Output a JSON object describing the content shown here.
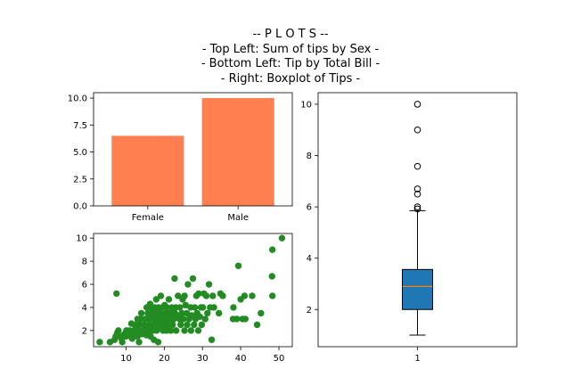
{
  "figure": {
    "title_lines": [
      "-- P L O T S --",
      "- Top Left: Sum of tips by Sex -",
      "- Bottom Left: Tip by Total Bill -",
      "- Right: Boxplot of Tips -"
    ]
  },
  "chart_data": [
    {
      "type": "bar",
      "categories": [
        "Female",
        "Male"
      ],
      "values": [
        6.5,
        10.0
      ],
      "ylim": [
        0,
        10.5
      ],
      "yticks": [
        0.0,
        2.5,
        5.0,
        7.5,
        10.0
      ],
      "ytick_labels": [
        "0.0",
        "2.5",
        "5.0",
        "7.5",
        "10.0"
      ],
      "color": "#ff7f50",
      "grid": false
    },
    {
      "type": "scatter",
      "xlim": [
        1.5,
        53.5
      ],
      "ylim": [
        0.6,
        10.4
      ],
      "xticks": [
        10,
        20,
        30,
        40,
        50
      ],
      "yticks": [
        2,
        4,
        6,
        8,
        10
      ],
      "color": "#228b22",
      "grid": false,
      "points": [
        [
          3.1,
          1.0
        ],
        [
          5.8,
          1.0
        ],
        [
          7.0,
          1.2
        ],
        [
          7.3,
          1.5
        ],
        [
          7.5,
          5.2
        ],
        [
          7.7,
          1.8
        ],
        [
          8.0,
          2.0
        ],
        [
          8.5,
          1.5
        ],
        [
          8.8,
          1.3
        ],
        [
          9.0,
          1.0
        ],
        [
          9.6,
          1.7
        ],
        [
          10.0,
          1.5
        ],
        [
          10.1,
          2.0
        ],
        [
          10.3,
          1.8
        ],
        [
          10.6,
          1.6
        ],
        [
          11.0,
          2.0
        ],
        [
          11.2,
          1.5
        ],
        [
          11.4,
          2.6
        ],
        [
          11.6,
          1.3
        ],
        [
          12.0,
          2.0
        ],
        [
          12.3,
          2.5
        ],
        [
          12.5,
          1.7
        ],
        [
          12.8,
          2.2
        ],
        [
          13.0,
          1.5
        ],
        [
          13.0,
          3.0
        ],
        [
          13.3,
          2.0
        ],
        [
          13.4,
          1.0
        ],
        [
          13.6,
          2.5
        ],
        [
          13.9,
          3.0
        ],
        [
          14.0,
          3.5
        ],
        [
          14.2,
          1.7
        ],
        [
          14.5,
          2.0
        ],
        [
          14.8,
          2.5
        ],
        [
          15.0,
          2.3
        ],
        [
          15.0,
          3.0
        ],
        [
          15.3,
          1.6
        ],
        [
          15.4,
          4.0
        ],
        [
          15.6,
          2.0
        ],
        [
          15.7,
          3.5
        ],
        [
          16.0,
          2.5
        ],
        [
          16.0,
          3.0
        ],
        [
          16.2,
          2.0
        ],
        [
          16.3,
          4.3
        ],
        [
          16.4,
          1.5
        ],
        [
          16.5,
          3.2
        ],
        [
          16.6,
          2.3
        ],
        [
          16.8,
          3.9
        ],
        [
          17.0,
          2.0
        ],
        [
          17.0,
          3.5
        ],
        [
          17.2,
          2.6
        ],
        [
          17.3,
          1.2
        ],
        [
          17.5,
          3.0
        ],
        [
          17.5,
          4.0
        ],
        [
          17.8,
          2.5
        ],
        [
          17.9,
          4.7
        ],
        [
          18.0,
          2.0
        ],
        [
          18.0,
          3.3
        ],
        [
          18.2,
          3.5
        ],
        [
          18.3,
          2.8
        ],
        [
          18.4,
          1.0
        ],
        [
          18.5,
          4.0
        ],
        [
          18.7,
          3.0
        ],
        [
          18.8,
          2.2
        ],
        [
          19.0,
          3.5
        ],
        [
          19.1,
          5.0
        ],
        [
          19.3,
          2.5
        ],
        [
          19.4,
          3.0
        ],
        [
          19.5,
          4.0
        ],
        [
          19.7,
          2.0
        ],
        [
          19.8,
          3.2
        ],
        [
          20.0,
          3.0
        ],
        [
          20.1,
          4.2
        ],
        [
          20.2,
          2.5
        ],
        [
          20.3,
          3.5
        ],
        [
          20.5,
          3.0
        ],
        [
          20.6,
          2.0
        ],
        [
          20.7,
          4.0
        ],
        [
          20.9,
          3.5
        ],
        [
          21.0,
          3.0
        ],
        [
          21.0,
          2.5
        ],
        [
          21.2,
          4.7
        ],
        [
          21.5,
          3.5
        ],
        [
          21.7,
          2.0
        ],
        [
          21.9,
          3.0
        ],
        [
          22.0,
          4.0
        ],
        [
          22.2,
          2.5
        ],
        [
          22.4,
          3.5
        ],
        [
          22.5,
          3.0
        ],
        [
          22.7,
          6.5
        ],
        [
          22.8,
          3.5
        ],
        [
          23.0,
          4.0
        ],
        [
          23.1,
          2.0
        ],
        [
          23.3,
          3.3
        ],
        [
          23.6,
          5.0
        ],
        [
          24.0,
          3.0
        ],
        [
          24.1,
          4.0
        ],
        [
          24.3,
          2.5
        ],
        [
          24.6,
          3.5
        ],
        [
          24.8,
          4.7
        ],
        [
          25.0,
          3.0
        ],
        [
          25.3,
          2.0
        ],
        [
          25.3,
          5.0
        ],
        [
          25.6,
          4.2
        ],
        [
          25.9,
          3.5
        ],
        [
          26.0,
          2.5
        ],
        [
          26.2,
          6.0
        ],
        [
          26.5,
          3.0
        ],
        [
          26.9,
          4.0
        ],
        [
          27.0,
          2.0
        ],
        [
          27.2,
          3.3
        ],
        [
          27.5,
          6.5
        ],
        [
          27.8,
          2.5
        ],
        [
          28.0,
          4.0
        ],
        [
          28.2,
          3.0
        ],
        [
          28.4,
          5.0
        ],
        [
          28.6,
          3.5
        ],
        [
          28.9,
          2.0
        ],
        [
          29.0,
          5.2
        ],
        [
          29.3,
          3.2
        ],
        [
          29.6,
          4.0
        ],
        [
          29.8,
          2.5
        ],
        [
          30.1,
          4.0
        ],
        [
          30.4,
          5.2
        ],
        [
          30.7,
          3.0
        ],
        [
          31.0,
          5.0
        ],
        [
          31.3,
          3.5
        ],
        [
          31.7,
          6.0
        ],
        [
          32.0,
          4.0
        ],
        [
          32.4,
          1.2
        ],
        [
          32.7,
          5.0
        ],
        [
          33.0,
          4.0
        ],
        [
          34.3,
          3.5
        ],
        [
          34.7,
          5.2
        ],
        [
          35.3,
          5.0
        ],
        [
          38.0,
          3.0
        ],
        [
          38.1,
          4.0
        ],
        [
          39.4,
          7.6
        ],
        [
          39.0,
          3.0
        ],
        [
          40.0,
          4.7
        ],
        [
          40.5,
          3.0
        ],
        [
          41.0,
          5.0
        ],
        [
          41.2,
          3.0
        ],
        [
          43.0,
          5.0
        ],
        [
          44.3,
          2.5
        ],
        [
          45.3,
          3.5
        ],
        [
          48.3,
          9.0
        ],
        [
          48.2,
          6.7
        ],
        [
          48.3,
          5.0
        ],
        [
          50.8,
          10.0
        ]
      ]
    },
    {
      "type": "box",
      "categories": [
        "1"
      ],
      "ylim": [
        0.55,
        10.45
      ],
      "yticks": [
        2,
        4,
        6,
        8,
        10
      ],
      "q1": 2.0,
      "median": 2.9,
      "q3": 3.56,
      "whisker_low": 1.0,
      "whisker_high": 5.85,
      "outliers": [
        6.0,
        5.92,
        6.5,
        6.7,
        7.58,
        9.0,
        10.0
      ],
      "box_color": "#1f77b4",
      "median_color": "#ff7f0e",
      "grid": false
    }
  ]
}
